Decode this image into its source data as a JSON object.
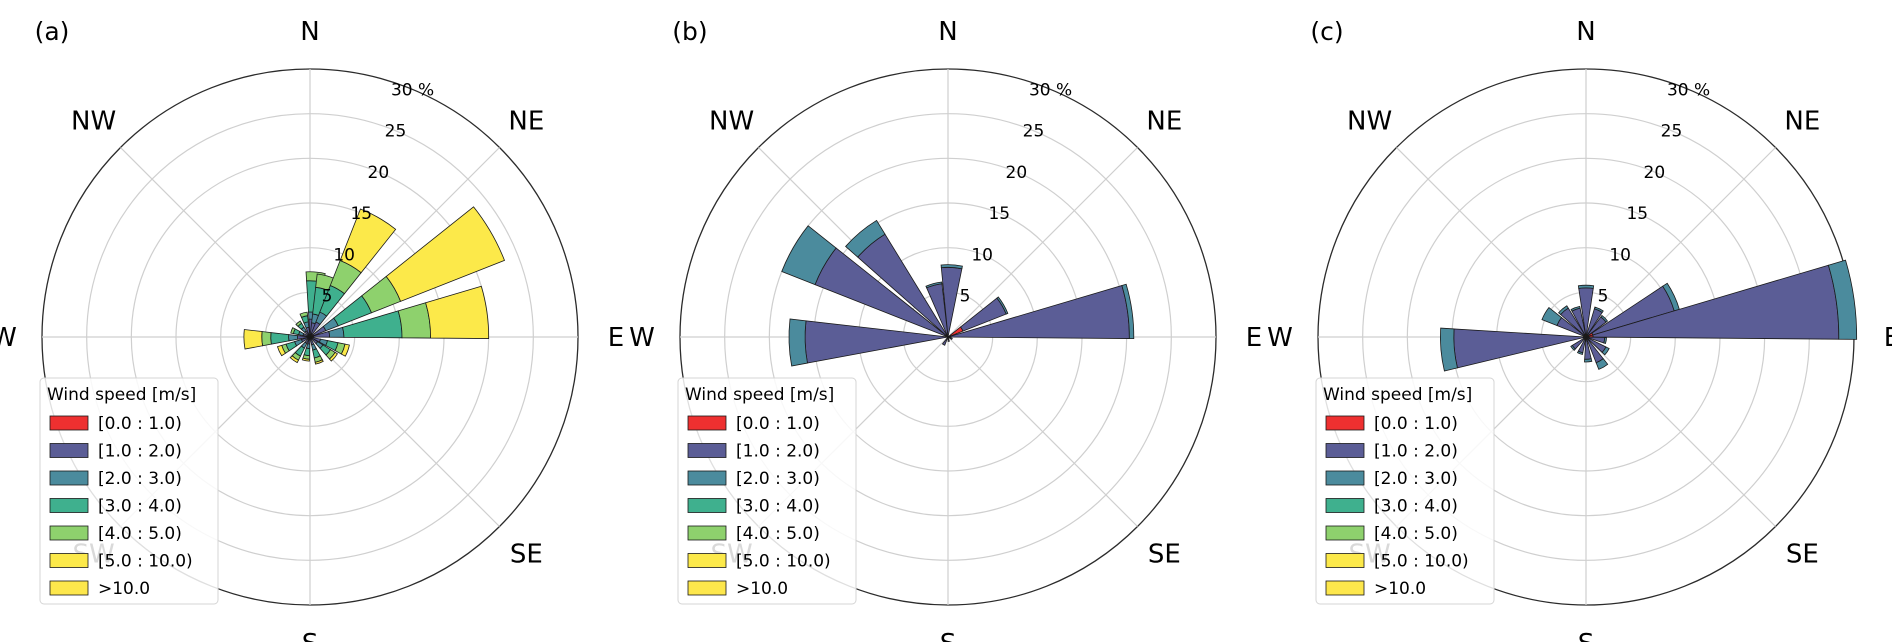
{
  "legend": {
    "title": "Wind speed [m/s]",
    "bins": [
      "[0.0 : 1.0)",
      "[1.0 : 2.0)",
      "[2.0 : 3.0)",
      "[3.0 : 4.0)",
      "[4.0 : 5.0)",
      "[5.0 : 10.0)",
      ">10.0"
    ],
    "colors": [
      "#ee3030",
      "#5b5d96",
      "#4b8b9d",
      "#3fb08e",
      "#8ed16d",
      "#fce94a",
      "#fde74c"
    ]
  },
  "compass": [
    "N",
    "NE",
    "E",
    "SE",
    "S",
    "SW",
    "W",
    "NW"
  ],
  "radial_ticks": [
    "5",
    "10",
    "15",
    "20",
    "25",
    "30 %"
  ],
  "chart_data": [
    {
      "panel_label": "(a)",
      "type": "windrose",
      "rmax": 30,
      "radial_ticks": [
        5,
        10,
        15,
        20,
        25,
        30
      ],
      "unit": "%",
      "bars": [
        {
          "dir": 5,
          "stack": [
            0.4,
            1.6,
            0.8,
            3.5,
            1.0,
            0
          ]
        },
        {
          "dir": 15,
          "stack": [
            0.3,
            1.3,
            1.0,
            3.0,
            1.5,
            0
          ]
        },
        {
          "dir": 30,
          "stack": [
            0.4,
            1.4,
            1.2,
            3.2,
            3.0,
            6.2
          ]
        },
        {
          "dir": 60,
          "stack": [
            0.4,
            1.5,
            1.5,
            4.0,
            3.5,
            12.5
          ]
        },
        {
          "dir": 82,
          "stack": [
            0.4,
            1.8,
            1.6,
            6.5,
            3.2,
            6.5
          ]
        },
        {
          "dir": 110,
          "stack": [
            0.2,
            1.0,
            0.8,
            1.2,
            0.8,
            0.5
          ]
        },
        {
          "dir": 130,
          "stack": [
            0.2,
            0.8,
            0.7,
            1.0,
            0.6,
            0.3
          ]
        },
        {
          "dir": 160,
          "stack": [
            0.2,
            0.7,
            0.6,
            0.9,
            0.5,
            0.2
          ]
        },
        {
          "dir": 190,
          "stack": [
            0.2,
            0.6,
            0.5,
            0.8,
            0.4,
            0.2
          ]
        },
        {
          "dir": 215,
          "stack": [
            0.2,
            0.6,
            0.6,
            1.0,
            0.5,
            0.3
          ]
        },
        {
          "dir": 245,
          "stack": [
            0.2,
            0.8,
            0.8,
            1.0,
            0.5,
            0.5
          ]
        },
        {
          "dir": 268,
          "stack": [
            0.2,
            1.2,
            1.0,
            2.0,
            1.0,
            2.0
          ]
        },
        {
          "dir": 290,
          "stack": [
            0.2,
            0.6,
            0.5,
            0.6,
            0.3,
            0
          ]
        },
        {
          "dir": 320,
          "stack": [
            0.2,
            0.6,
            0.5,
            0.5,
            0.3,
            0
          ]
        },
        {
          "dir": 345,
          "stack": [
            0.3,
            0.8,
            0.6,
            0.7,
            0.4,
            0
          ]
        }
      ]
    },
    {
      "panel_label": "(b)",
      "type": "windrose",
      "rmax": 30,
      "radial_ticks": [
        5,
        10,
        15,
        20,
        25,
        30
      ],
      "unit": "%",
      "bars": [
        {
          "dir": 3,
          "stack": [
            0,
            7.8,
            0.3,
            0,
            0,
            0
          ]
        },
        {
          "dir": 60,
          "stack": [
            1.8,
            5.2,
            0.2,
            0,
            0,
            0
          ]
        },
        {
          "dir": 82,
          "stack": [
            0.3,
            20.0,
            0.5,
            0,
            0,
            0
          ]
        },
        {
          "dir": 115,
          "stack": [
            0.2,
            0.3,
            0,
            0,
            0,
            0
          ]
        },
        {
          "dir": 170,
          "stack": [
            0.2,
            0.3,
            0,
            0,
            0,
            0
          ]
        },
        {
          "dir": 210,
          "stack": [
            0.2,
            0.8,
            0,
            0,
            0,
            0
          ]
        },
        {
          "dir": 268,
          "stack": [
            0,
            16.0,
            1.8,
            0,
            0,
            0
          ]
        },
        {
          "dir": 300,
          "stack": [
            0,
            16.0,
            4.0,
            0,
            0,
            0
          ]
        },
        {
          "dir": 320,
          "stack": [
            0,
            13.5,
            1.8,
            0,
            0,
            0
          ]
        },
        {
          "dir": 345,
          "stack": [
            0,
            6.0,
            0.2,
            0,
            0,
            0
          ]
        }
      ]
    },
    {
      "panel_label": "(c)",
      "type": "windrose",
      "rmax": 30,
      "radial_ticks": [
        5,
        10,
        15,
        20,
        25,
        30
      ],
      "unit": "%",
      "bars": [
        {
          "dir": 0,
          "stack": [
            0.3,
            5.2,
            0.3,
            0,
            0,
            0
          ]
        },
        {
          "dir": 25,
          "stack": [
            0.3,
            3.0,
            0.2,
            0,
            0,
            0
          ]
        },
        {
          "dir": 45,
          "stack": [
            0.3,
            2.5,
            0.2,
            0,
            0,
            0
          ]
        },
        {
          "dir": 65,
          "stack": [
            0.8,
            9.5,
            0.6,
            0,
            0,
            0
          ]
        },
        {
          "dir": 82,
          "stack": [
            0.8,
            27.5,
            2.0,
            0,
            0,
            0
          ]
        },
        {
          "dir": 100,
          "stack": [
            0.3,
            1.8,
            0.2,
            0,
            0,
            0
          ]
        },
        {
          "dir": 125,
          "stack": [
            0.3,
            2.2,
            0.4,
            0,
            0,
            0
          ]
        },
        {
          "dir": 150,
          "stack": [
            0.3,
            2.8,
            0.8,
            0,
            0,
            0
          ]
        },
        {
          "dir": 175,
          "stack": [
            0.3,
            2.2,
            0.3,
            0,
            0,
            0
          ]
        },
        {
          "dir": 200,
          "stack": [
            0.3,
            1.5,
            0.2,
            0,
            0,
            0
          ]
        },
        {
          "dir": 230,
          "stack": [
            0.3,
            1.5,
            0.2,
            0,
            0,
            0
          ]
        },
        {
          "dir": 265,
          "stack": [
            0.3,
            14.5,
            1.5,
            0,
            0,
            0
          ]
        },
        {
          "dir": 300,
          "stack": [
            0.3,
            3.2,
            1.8,
            0,
            0,
            0
          ]
        },
        {
          "dir": 320,
          "stack": [
            0.3,
            3.5,
            0.3,
            0,
            0,
            0
          ]
        },
        {
          "dir": 340,
          "stack": [
            0.3,
            3.0,
            0.2,
            0,
            0,
            0
          ]
        }
      ]
    }
  ]
}
